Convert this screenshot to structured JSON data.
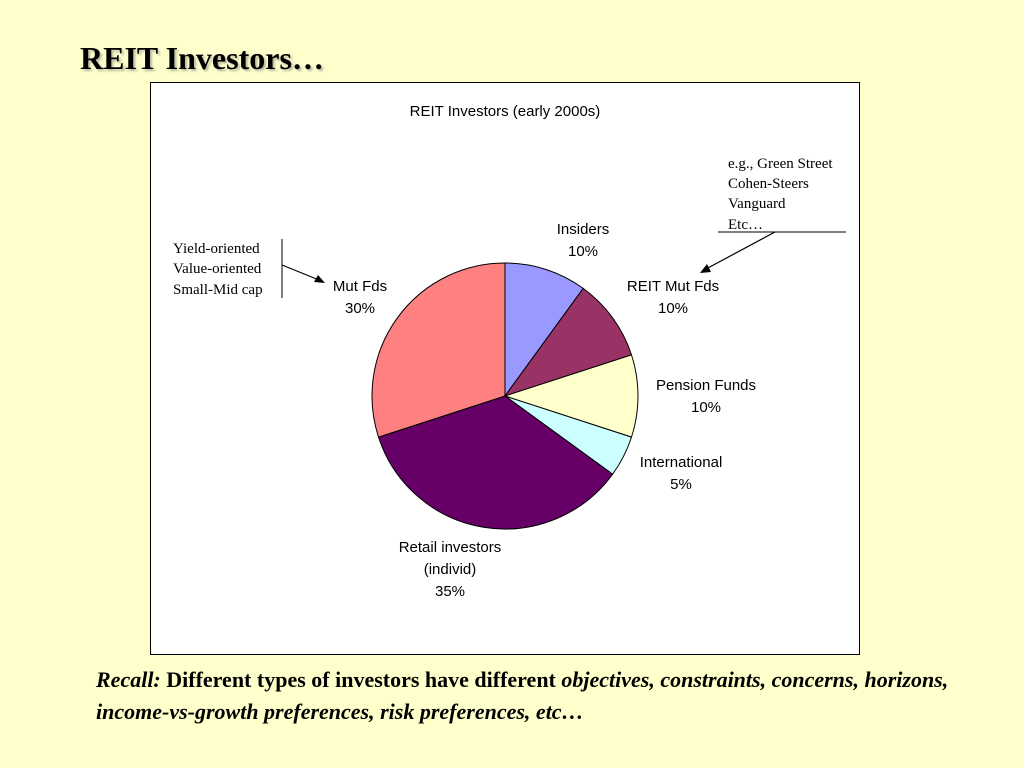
{
  "slide_title": "REIT Investors…",
  "chart_data": {
    "type": "pie",
    "title": "REIT Investors (early 2000s)",
    "slices": [
      {
        "lines": [
          "Insiders",
          "10%"
        ],
        "value": 10,
        "color": "#9999ff"
      },
      {
        "lines": [
          "REIT Mut Fds",
          "10%"
        ],
        "value": 10,
        "color": "#993366"
      },
      {
        "lines": [
          "Pension Funds",
          "10%"
        ],
        "value": 10,
        "color": "#ffffcc"
      },
      {
        "lines": [
          "International",
          "5%"
        ],
        "value": 5,
        "color": "#ccffff"
      },
      {
        "lines": [
          "Retail investors",
          "(individ)",
          "35%"
        ],
        "value": 35,
        "color": "#660066"
      },
      {
        "lines": [
          "Mut Fds",
          "30%"
        ],
        "value": 30,
        "color": "#ff8080"
      }
    ]
  },
  "annotations": {
    "left_note": [
      "Yield-oriented",
      "Value-oriented",
      "Small-Mid cap"
    ],
    "right_note": [
      "e.g., Green Street",
      "Cohen-Steers",
      "Vanguard",
      "Etc…"
    ]
  },
  "recall": {
    "lead": "Recall:",
    "plain": " Different types of investors have different ",
    "italic": "objectives, constraints, concerns, horizons, income-vs-growth preferences, risk preferences, etc…"
  }
}
